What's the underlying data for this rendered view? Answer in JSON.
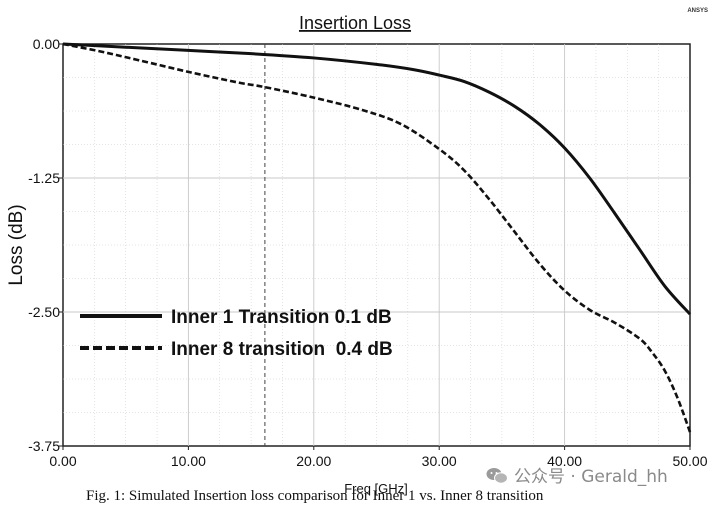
{
  "chart_data": {
    "type": "line",
    "title": "Insertion Loss",
    "xlabel": "Freq [GHz]",
    "ylabel": "Loss (dB)",
    "xlim": [
      0,
      50
    ],
    "ylim": [
      -3.75,
      0
    ],
    "xticks": [
      0,
      10,
      20,
      30,
      40,
      50
    ],
    "xtick_labels": [
      "0.00",
      "10.00",
      "20.00",
      "30.00",
      "40.00",
      "50.00"
    ],
    "yticks": [
      0,
      -1.25,
      -2.5,
      -3.75
    ],
    "ytick_labels": [
      "0.00",
      "-1.25",
      "-2.50",
      "-3.75"
    ],
    "grid": true,
    "marker_line_x": 16.1,
    "legend_position": "lower-left",
    "series": [
      {
        "name": "Inner 1 Transition 0.1 dB",
        "style": "solid",
        "x": [
          0,
          5,
          10,
          15,
          20,
          25,
          28,
          30,
          32,
          34,
          36,
          38,
          40,
          42,
          44,
          46,
          48,
          50
        ],
        "y": [
          0,
          -0.03,
          -0.06,
          -0.09,
          -0.13,
          -0.19,
          -0.24,
          -0.29,
          -0.35,
          -0.45,
          -0.58,
          -0.75,
          -0.97,
          -1.25,
          -1.58,
          -1.92,
          -2.26,
          -2.52
        ]
      },
      {
        "name": "Inner 8 transition  0.4 dB",
        "style": "dashed",
        "x": [
          0,
          3,
          6,
          10,
          14,
          16,
          20,
          24,
          27,
          30,
          32,
          34,
          36,
          38,
          40,
          42,
          44,
          46,
          47,
          48,
          49,
          50
        ],
        "y": [
          0,
          -0.07,
          -0.15,
          -0.26,
          -0.36,
          -0.4,
          -0.5,
          -0.62,
          -0.75,
          -0.98,
          -1.18,
          -1.45,
          -1.75,
          -2.05,
          -2.3,
          -2.48,
          -2.6,
          -2.75,
          -2.88,
          -3.05,
          -3.3,
          -3.62
        ]
      }
    ]
  },
  "brand": "ANSYS",
  "caption": "Fig. 1: Simulated Insertion loss comparison for Inner 1 vs. Inner 8 transition",
  "watermark": "公众号 · Gerald_hh",
  "colors": {
    "line": "#111111",
    "grid": "#c8c8c8",
    "watermark": "#8a8a8a"
  }
}
